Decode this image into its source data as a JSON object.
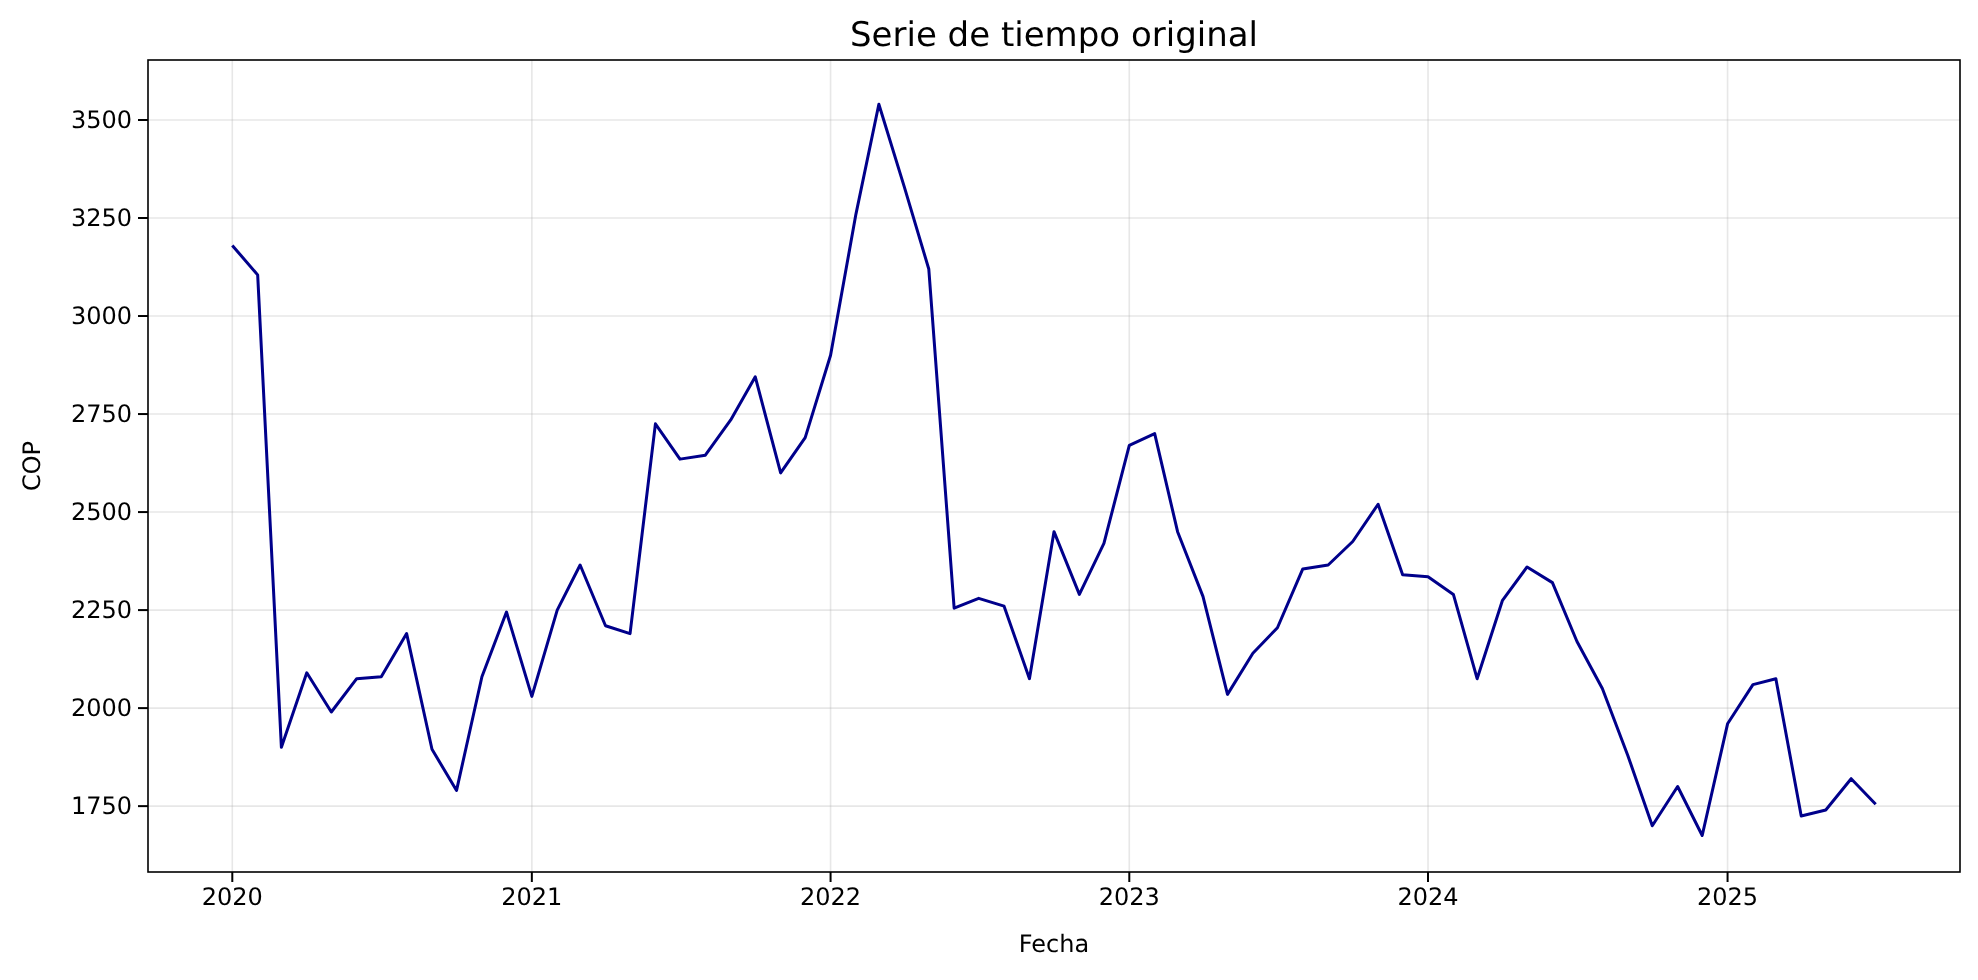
{
  "chart_data": {
    "type": "line",
    "title": "Serie de tiempo original",
    "xlabel": "Fecha",
    "ylabel": "COP",
    "x": [
      "2020-01",
      "2020-02",
      "2020-03",
      "2020-04",
      "2020-05",
      "2020-06",
      "2020-07",
      "2020-08",
      "2020-09",
      "2020-10",
      "2020-11",
      "2020-12",
      "2021-01",
      "2021-02",
      "2021-03",
      "2021-04",
      "2021-05",
      "2021-06",
      "2021-07",
      "2021-08",
      "2021-09",
      "2021-10",
      "2021-11",
      "2021-12",
      "2022-01",
      "2022-02",
      "2022-03",
      "2022-04",
      "2022-05",
      "2022-06",
      "2022-07",
      "2022-08",
      "2022-09",
      "2022-10",
      "2022-11",
      "2022-12",
      "2023-01",
      "2023-02",
      "2023-03",
      "2023-04",
      "2023-05",
      "2023-06",
      "2023-07",
      "2023-08",
      "2023-09",
      "2023-10",
      "2023-11",
      "2023-12",
      "2024-01",
      "2024-02",
      "2024-03",
      "2024-04",
      "2024-05",
      "2024-06",
      "2024-07",
      "2024-08",
      "2024-09",
      "2024-10",
      "2024-11",
      "2024-12",
      "2025-01",
      "2025-02",
      "2025-03",
      "2025-04",
      "2025-05",
      "2025-06",
      "2025-07"
    ],
    "series": [
      {
        "color": "#00008b",
        "values": [
          3180,
          3105,
          1900,
          2090,
          1990,
          2075,
          2080,
          2190,
          1895,
          1790,
          2080,
          2245,
          2030,
          2250,
          2365,
          2210,
          2190,
          2725,
          2635,
          2645,
          2735,
          2845,
          2600,
          2690,
          2900,
          3260,
          3540,
          3330,
          3120,
          2255,
          2280,
          2260,
          2075,
          2450,
          2290,
          2420,
          2670,
          2700,
          2450,
          2285,
          2035,
          2140,
          2205,
          2355,
          2365,
          2425,
          2520,
          2340,
          2335,
          2290,
          2075,
          2275,
          2360,
          2320,
          2170,
          2050,
          1880,
          1700,
          1800,
          1675,
          1960,
          2060,
          2075,
          1725,
          1740,
          1820,
          1755
        ]
      }
    ],
    "xlim": [
      "2019-09-20",
      "2025-10-12"
    ],
    "ylim": [
      1582,
      3653
    ],
    "xticks": [
      "2020",
      "2021",
      "2022",
      "2023",
      "2024",
      "2025"
    ],
    "yticks": [
      1750,
      2000,
      2250,
      2500,
      2750,
      3000,
      3250,
      3500
    ],
    "grid": true,
    "marker": "none",
    "line_style": "solid"
  }
}
